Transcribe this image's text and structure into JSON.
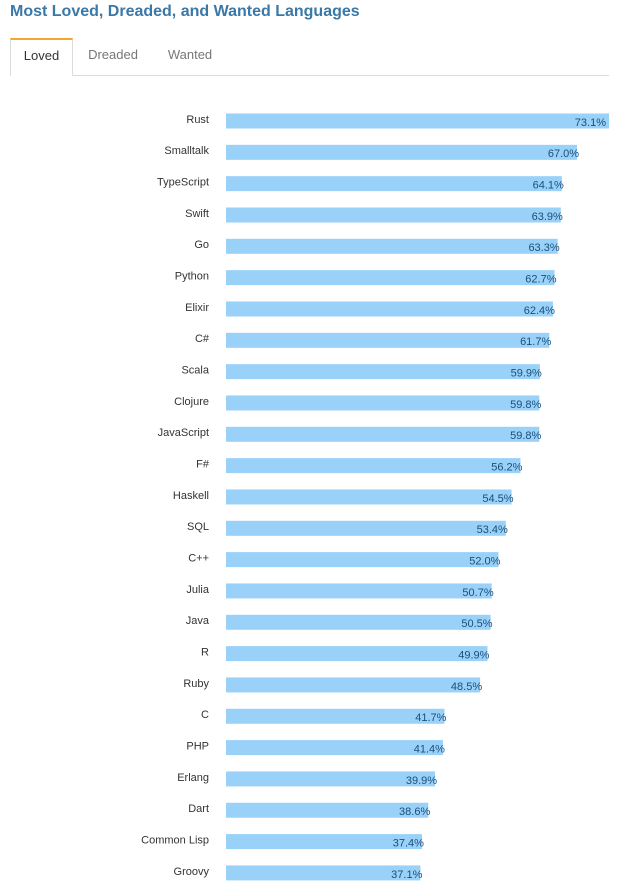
{
  "header": {
    "title": "Most Loved, Dreaded, and Wanted Languages"
  },
  "tabs": [
    {
      "label": "Loved",
      "active": true
    },
    {
      "label": "Dreaded",
      "active": false
    },
    {
      "label": "Wanted",
      "active": false
    }
  ],
  "colors": {
    "bar": "#99d1f9",
    "title": "#3a78a8",
    "active_tab_accent": "#f0a830",
    "value_label": "#1a4f7a"
  },
  "chart_data": {
    "type": "bar",
    "orientation": "horizontal",
    "title": "",
    "xlabel": "",
    "ylabel": "",
    "value_suffix": "%",
    "xlim": [
      0,
      73.1
    ],
    "grid": false,
    "legend": "none",
    "categories": [
      "Rust",
      "Smalltalk",
      "TypeScript",
      "Swift",
      "Go",
      "Python",
      "Elixir",
      "C#",
      "Scala",
      "Clojure",
      "JavaScript",
      "F#",
      "Haskell",
      "SQL",
      "C++",
      "Julia",
      "Java",
      "R",
      "Ruby",
      "C",
      "PHP",
      "Erlang",
      "Dart",
      "Common Lisp",
      "Groovy"
    ],
    "values": [
      73.1,
      67.0,
      64.1,
      63.9,
      63.3,
      62.7,
      62.4,
      61.7,
      59.9,
      59.8,
      59.8,
      56.2,
      54.5,
      53.4,
      52.0,
      50.7,
      50.5,
      49.9,
      48.5,
      41.7,
      41.4,
      39.9,
      38.6,
      37.4,
      37.1
    ],
    "value_labels": [
      "73.1%",
      "67.0%",
      "64.1%",
      "63.9%",
      "63.3%",
      "62.7%",
      "62.4%",
      "61.7%",
      "59.9%",
      "59.8%",
      "59.8%",
      "56.2%",
      "54.5%",
      "53.4%",
      "52.0%",
      "50.7%",
      "50.5%",
      "49.9%",
      "48.5%",
      "41.7%",
      "41.4%",
      "39.9%",
      "38.6%",
      "37.4%",
      "37.1%"
    ]
  }
}
